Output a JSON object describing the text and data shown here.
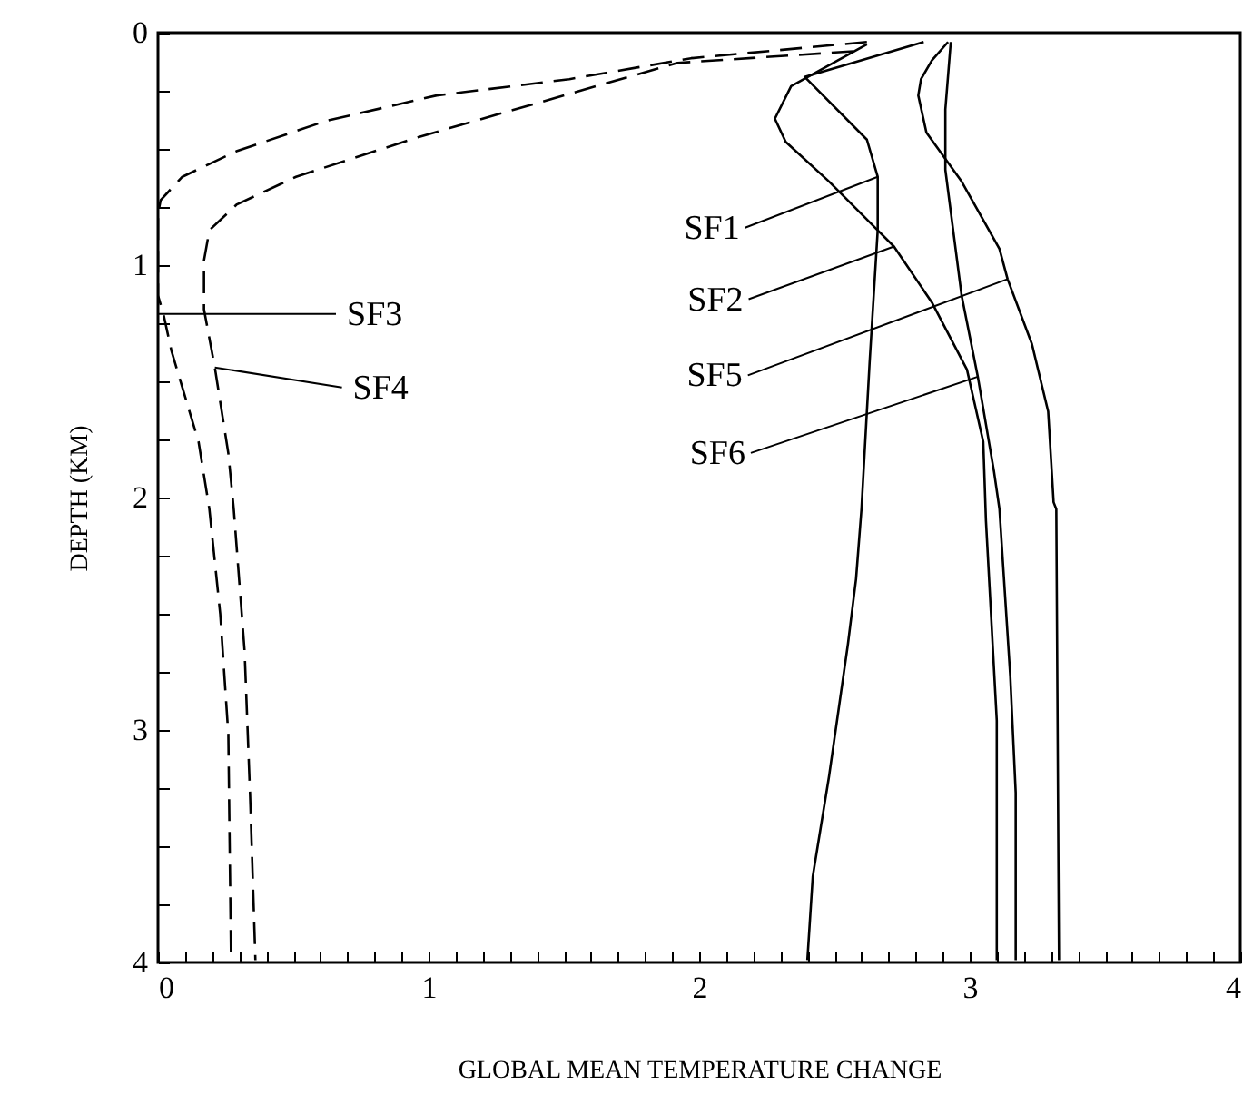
{
  "chart_data": {
    "type": "line",
    "xlabel": "GLOBAL MEAN TEMPERATURE CHANGE",
    "ylabel": "DEPTH (KM)",
    "xlim": [
      0,
      4
    ],
    "ylim": [
      4,
      0
    ],
    "xticks": [
      0,
      1,
      2,
      3,
      4,
      {
        "value": 0.1,
        "label": null
      },
      {
        "value": 0.2,
        "label": null
      },
      {
        "value": 0.3,
        "label": null
      },
      {
        "value": 0.4,
        "label": null
      },
      {
        "value": 0.5,
        "label": null
      },
      {
        "value": 0.6,
        "label": null
      },
      {
        "value": 0.7,
        "label": null
      },
      {
        "value": 0.8,
        "label": null
      },
      {
        "value": 0.9,
        "label": null
      },
      {
        "value": 1.1,
        "label": null
      },
      {
        "value": 1.2,
        "label": null
      },
      {
        "value": 1.3,
        "label": null
      },
      {
        "value": 1.4,
        "label": null
      },
      {
        "value": 1.5,
        "label": null
      },
      {
        "value": 1.6,
        "label": null
      },
      {
        "value": 1.7,
        "label": null
      },
      {
        "value": 1.8,
        "label": null
      },
      {
        "value": 1.9,
        "label": null
      },
      {
        "value": 2.1,
        "label": null
      },
      {
        "value": 2.2,
        "label": null
      },
      {
        "value": 2.3,
        "label": null
      },
      {
        "value": 2.4,
        "label": null
      },
      {
        "value": 2.5,
        "label": null
      },
      {
        "value": 2.6,
        "label": null
      },
      {
        "value": 2.7,
        "label": null
      },
      {
        "value": 2.8,
        "label": null
      },
      {
        "value": 2.9,
        "label": null
      },
      {
        "value": 3.1,
        "label": null
      },
      {
        "value": 3.2,
        "label": null
      },
      {
        "value": 3.3,
        "label": null
      },
      {
        "value": 3.4,
        "label": null
      },
      {
        "value": 3.5,
        "label": null
      },
      {
        "value": 3.6,
        "label": null
      },
      {
        "value": 3.7,
        "label": null
      },
      {
        "value": 3.8,
        "label": null
      },
      {
        "value": 3.9,
        "label": null
      }
    ],
    "yticks": [
      0,
      1,
      2,
      3,
      4,
      {
        "value": 0.25,
        "label": null
      },
      {
        "value": 0.5,
        "label": null
      },
      {
        "value": 0.75,
        "label": null
      },
      {
        "value": 1.25,
        "label": null
      },
      {
        "value": 1.5,
        "label": null
      },
      {
        "value": 1.75,
        "label": null
      },
      {
        "value": 2.25,
        "label": null
      },
      {
        "value": 2.5,
        "label": null
      },
      {
        "value": 2.75,
        "label": null
      },
      {
        "value": 3.25,
        "label": null
      },
      {
        "value": 3.5,
        "label": null
      },
      {
        "value": 3.75,
        "label": null
      }
    ],
    "grid": false,
    "marker": "none",
    "series": [
      {
        "color": "#000000",
        "line_style": "solid",
        "x": [
          2.83,
          2.39,
          2.62,
          2.66,
          2.66,
          2.63,
          2.6,
          2.58,
          2.55,
          2.48,
          2.42,
          2.4
        ],
        "values": [
          0.04,
          0.19,
          0.46,
          0.62,
          0.85,
          1.42,
          2.05,
          2.35,
          2.63,
          3.2,
          3.63,
          3.99
        ]
      },
      {
        "color": "#000000",
        "line_style": "solid",
        "x": [
          2.62,
          2.34,
          2.28,
          2.32,
          2.48,
          2.66,
          2.72,
          2.86,
          2.99,
          3.05,
          3.06,
          3.1,
          3.1
        ],
        "values": [
          0.05,
          0.23,
          0.37,
          0.47,
          0.64,
          0.85,
          0.92,
          1.16,
          1.45,
          1.76,
          2.1,
          2.96,
          3.99
        ]
      },
      {
        "color": "#000000",
        "line_style": "dashed",
        "x": [
          2.62,
          1.97,
          1.52,
          1.03,
          0.62,
          0.29,
          0.09,
          0.01,
          0,
          0,
          0.02,
          0.05,
          0.15,
          0.19,
          0.23,
          0.26,
          0.27
        ],
        "values": [
          0.04,
          0.11,
          0.2,
          0.27,
          0.38,
          0.51,
          0.62,
          0.72,
          0.78,
          1.13,
          1.21,
          1.37,
          1.76,
          2.05,
          2.5,
          3.02,
          3.99
        ]
      },
      {
        "color": "#000000",
        "line_style": "dashed",
        "x": [
          2.57,
          1.92,
          1.41,
          0.96,
          0.51,
          0.29,
          0.19,
          0.17,
          0.17,
          0.21,
          0.26,
          0.28,
          0.32,
          0.34,
          0.36
        ],
        "values": [
          0.08,
          0.13,
          0.3,
          0.45,
          0.62,
          0.74,
          0.85,
          0.98,
          1.19,
          1.44,
          1.81,
          2.05,
          2.66,
          3.27,
          3.99
        ]
      },
      {
        "color": "#000000",
        "line_style": "solid",
        "x": [
          2.92,
          2.86,
          2.82,
          2.81,
          2.84,
          2.97,
          3.11,
          3.14,
          3.23,
          3.29,
          3.31,
          3.32,
          3.33
        ],
        "values": [
          0.04,
          0.12,
          0.2,
          0.27,
          0.43,
          0.64,
          0.93,
          1.06,
          1.34,
          1.63,
          2.02,
          2.05,
          3.99
        ]
      },
      {
        "color": "#000000",
        "line_style": "solid",
        "x": [
          2.93,
          2.91,
          2.91,
          2.97,
          3.03,
          3.09,
          3.11,
          3.15,
          3.17,
          3.17
        ],
        "values": [
          0.04,
          0.33,
          0.59,
          1.13,
          1.48,
          1.89,
          2.05,
          2.77,
          3.27,
          3.99
        ]
      }
    ],
    "annotations": [
      {
        "text": "SF1",
        "x": 2.66,
        "y": 0.62
      },
      {
        "text": "SF2",
        "x": 2.72,
        "y": 0.92
      },
      {
        "text": "SF3",
        "x": 0,
        "y": 1.21
      },
      {
        "text": "SF4",
        "x": 0.21,
        "y": 1.44
      },
      {
        "text": "SF5",
        "x": 3.14,
        "y": 1.06
      },
      {
        "text": "SF6",
        "x": 3.03,
        "y": 1.48
      }
    ]
  }
}
